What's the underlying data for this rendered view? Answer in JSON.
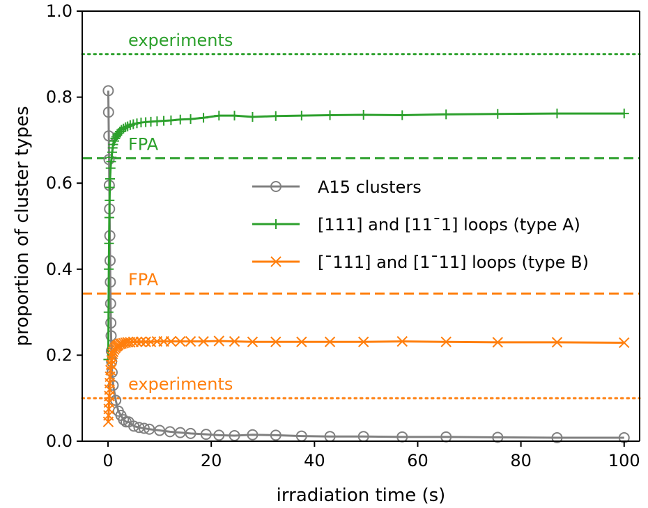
{
  "chart_data": {
    "type": "line",
    "xlabel": "irradiation time (s)",
    "ylabel": "proportion of cluster types",
    "xlim": [
      -5,
      103
    ],
    "ylim": [
      0.0,
      1.0
    ],
    "xticks": [
      0,
      20,
      40,
      60,
      80,
      100
    ],
    "yticks": [
      0.0,
      0.2,
      0.4,
      0.6,
      0.8,
      1.0
    ],
    "ytick_labels": [
      "0.0",
      "0.2",
      "0.4",
      "0.6",
      "0.8",
      "1.0"
    ],
    "grid": false,
    "legend_position": "center-right",
    "colors": {
      "a15": "#808080",
      "typeA": "#2ca02c",
      "typeB": "#ff7f0e"
    },
    "series": [
      {
        "name": "A15 clusters",
        "color": "#808080",
        "marker": "circle",
        "x": [
          0.05,
          0.1,
          0.15,
          0.2,
          0.25,
          0.3,
          0.35,
          0.4,
          0.45,
          0.5,
          0.55,
          0.6,
          0.65,
          0.7,
          0.8,
          1.0,
          1.5,
          2.0,
          2.5,
          3.0,
          3.5,
          4.0,
          5.0,
          6.0,
          7.0,
          8.0,
          10.0,
          12.0,
          14.0,
          16.0,
          19.0,
          21.5,
          24.5,
          28.0,
          32.5,
          37.5,
          43.0,
          49.5,
          57.0,
          65.5,
          75.5,
          87.0,
          100.0
        ],
        "y": [
          0.815,
          0.765,
          0.71,
          0.655,
          0.595,
          0.54,
          0.478,
          0.42,
          0.37,
          0.32,
          0.275,
          0.245,
          0.21,
          0.185,
          0.16,
          0.13,
          0.095,
          0.07,
          0.06,
          0.05,
          0.045,
          0.045,
          0.035,
          0.032,
          0.03,
          0.028,
          0.025,
          0.022,
          0.02,
          0.018,
          0.016,
          0.014,
          0.013,
          0.015,
          0.014,
          0.012,
          0.011,
          0.011,
          0.01,
          0.01,
          0.009,
          0.008,
          0.008
        ]
      },
      {
        "name": "[111] and [11̅1] loops (type A)",
        "legend_label": "[111] and [11¯1] loops (type A)",
        "color": "#2ca02c",
        "marker": "plus",
        "x": [
          0.05,
          0.1,
          0.15,
          0.2,
          0.25,
          0.3,
          0.35,
          0.4,
          0.5,
          0.6,
          0.7,
          0.8,
          0.9,
          1.0,
          1.2,
          1.4,
          1.6,
          1.8,
          2.0,
          2.3,
          2.6,
          3.0,
          3.4,
          3.8,
          4.3,
          4.9,
          5.6,
          6.4,
          7.3,
          8.3,
          9.5,
          10.8,
          12.2,
          14.0,
          16.0,
          18.5,
          21.5,
          24.5,
          28.0,
          32.5,
          37.5,
          43.0,
          49.5,
          57.0,
          65.5,
          75.5,
          87.0,
          100.0
        ],
        "y": [
          0.19,
          0.3,
          0.4,
          0.46,
          0.52,
          0.56,
          0.59,
          0.61,
          0.635,
          0.65,
          0.66,
          0.672,
          0.682,
          0.69,
          0.698,
          0.704,
          0.708,
          0.712,
          0.716,
          0.72,
          0.724,
          0.727,
          0.73,
          0.732,
          0.735,
          0.737,
          0.739,
          0.741,
          0.742,
          0.743,
          0.744,
          0.745,
          0.746,
          0.748,
          0.749,
          0.752,
          0.757,
          0.757,
          0.754,
          0.756,
          0.757,
          0.758,
          0.759,
          0.758,
          0.76,
          0.761,
          0.762,
          0.762
        ]
      },
      {
        "name": "[¯111] and [1¯11]  loops (type B)",
        "legend_label": "[¯111] and [1¯11]  loops (type B)",
        "color": "#ff7f0e",
        "marker": "x",
        "x": [
          0.05,
          0.1,
          0.15,
          0.2,
          0.25,
          0.3,
          0.35,
          0.4,
          0.5,
          0.6,
          0.7,
          0.8,
          0.9,
          1.0,
          1.2,
          1.4,
          1.6,
          1.8,
          2.0,
          2.3,
          2.6,
          3.0,
          3.4,
          3.8,
          4.3,
          4.9,
          5.6,
          6.4,
          7.3,
          8.3,
          9.5,
          10.8,
          12.2,
          14.0,
          16.0,
          18.5,
          21.5,
          24.5,
          28.0,
          32.5,
          37.5,
          43.0,
          49.5,
          57.0,
          65.5,
          75.5,
          87.0,
          100.0
        ],
        "y": [
          0.045,
          0.06,
          0.075,
          0.09,
          0.105,
          0.12,
          0.135,
          0.15,
          0.165,
          0.178,
          0.188,
          0.196,
          0.203,
          0.208,
          0.213,
          0.217,
          0.22,
          0.222,
          0.224,
          0.226,
          0.227,
          0.228,
          0.229,
          0.23,
          0.23,
          0.231,
          0.231,
          0.231,
          0.231,
          0.231,
          0.232,
          0.232,
          0.232,
          0.232,
          0.232,
          0.232,
          0.233,
          0.232,
          0.231,
          0.231,
          0.231,
          0.231,
          0.231,
          0.232,
          0.231,
          0.23,
          0.23,
          0.229
        ]
      }
    ],
    "reference_lines": [
      {
        "label": "experiments",
        "y": 0.9,
        "style": "dotted",
        "color": "#2ca02c"
      },
      {
        "label": "FPA",
        "y": 0.658,
        "style": "dashed",
        "color": "#2ca02c"
      },
      {
        "label": "FPA",
        "y": 0.343,
        "style": "dashed",
        "color": "#ff7f0e"
      },
      {
        "label": "experiments",
        "y": 0.1,
        "style": "dotted",
        "color": "#ff7f0e"
      }
    ]
  }
}
